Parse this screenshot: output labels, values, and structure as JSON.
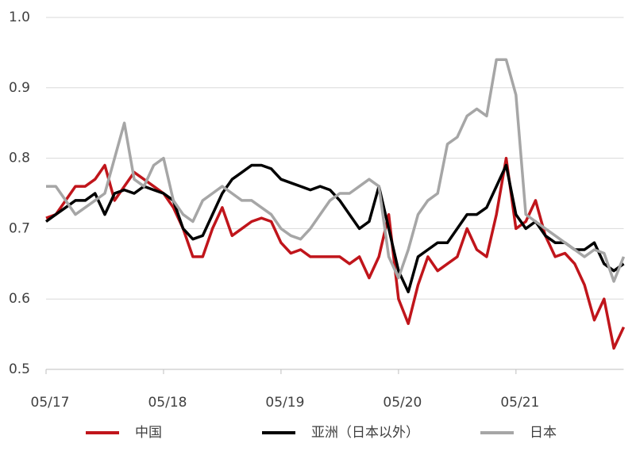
{
  "chart_data": {
    "type": "line",
    "categories": [
      "05/17",
      null,
      null,
      null,
      null,
      null,
      null,
      null,
      null,
      null,
      null,
      null,
      "05/18",
      null,
      null,
      null,
      null,
      null,
      null,
      null,
      null,
      null,
      null,
      null,
      "05/19",
      null,
      null,
      null,
      null,
      null,
      null,
      null,
      null,
      null,
      null,
      null,
      "05/20",
      null,
      null,
      null,
      null,
      null,
      null,
      null,
      null,
      null,
      null,
      null,
      "05/21",
      null,
      null,
      null,
      null,
      null,
      null,
      null,
      null,
      null,
      null,
      null
    ],
    "series": [
      {
        "name": "中国",
        "color": "#c0151b",
        "values": [
          0.715,
          0.72,
          0.74,
          0.76,
          0.76,
          0.77,
          0.79,
          0.74,
          0.76,
          0.78,
          0.77,
          0.76,
          0.75,
          0.73,
          0.7,
          0.66,
          0.66,
          0.7,
          0.73,
          0.69,
          0.7,
          0.71,
          0.715,
          0.71,
          0.68,
          0.665,
          0.67,
          0.66,
          0.66,
          0.66,
          0.66,
          0.65,
          0.66,
          0.63,
          0.66,
          0.72,
          0.6,
          0.565,
          0.62,
          0.66,
          0.64,
          0.65,
          0.66,
          0.7,
          0.67,
          0.66,
          0.72,
          0.8,
          0.7,
          0.71,
          0.74,
          0.69,
          0.66,
          0.665,
          0.65,
          0.62,
          0.57,
          0.6,
          0.53,
          0.56
        ]
      },
      {
        "name": "亚洲（日本以外）",
        "color": "#000000",
        "values": [
          0.71,
          0.72,
          0.73,
          0.74,
          0.74,
          0.75,
          0.72,
          0.75,
          0.755,
          0.75,
          0.76,
          0.755,
          0.75,
          0.74,
          0.7,
          0.685,
          0.69,
          0.72,
          0.75,
          0.77,
          0.78,
          0.79,
          0.79,
          0.785,
          0.77,
          0.765,
          0.76,
          0.755,
          0.76,
          0.755,
          0.74,
          0.72,
          0.7,
          0.71,
          0.76,
          0.7,
          0.64,
          0.61,
          0.66,
          0.67,
          0.68,
          0.68,
          0.7,
          0.72,
          0.72,
          0.73,
          0.76,
          0.79,
          0.72,
          0.7,
          0.71,
          0.69,
          0.68,
          0.68,
          0.67,
          0.67,
          0.68,
          0.65,
          0.64,
          0.65
        ]
      },
      {
        "name": "日本",
        "color": "#a6a6a6",
        "values": [
          0.76,
          0.76,
          0.74,
          0.72,
          0.73,
          0.74,
          0.75,
          0.8,
          0.85,
          0.77,
          0.76,
          0.79,
          0.8,
          0.74,
          0.72,
          0.71,
          0.74,
          0.75,
          0.76,
          0.75,
          0.74,
          0.74,
          0.73,
          0.72,
          0.7,
          0.69,
          0.685,
          0.7,
          0.72,
          0.74,
          0.75,
          0.75,
          0.76,
          0.77,
          0.76,
          0.66,
          0.63,
          0.67,
          0.72,
          0.74,
          0.75,
          0.82,
          0.83,
          0.86,
          0.87,
          0.86,
          0.94,
          0.94,
          0.89,
          0.72,
          0.71,
          0.7,
          0.69,
          0.68,
          0.67,
          0.66,
          0.67,
          0.665,
          0.625,
          0.66
        ]
      }
    ],
    "ylim": [
      0.5,
      1.0
    ],
    "yticks": [
      0.5,
      0.6,
      0.7,
      0.8,
      0.9,
      {
        "value": 1.0,
        "label": "1.0"
      }
    ],
    "grid": true
  }
}
